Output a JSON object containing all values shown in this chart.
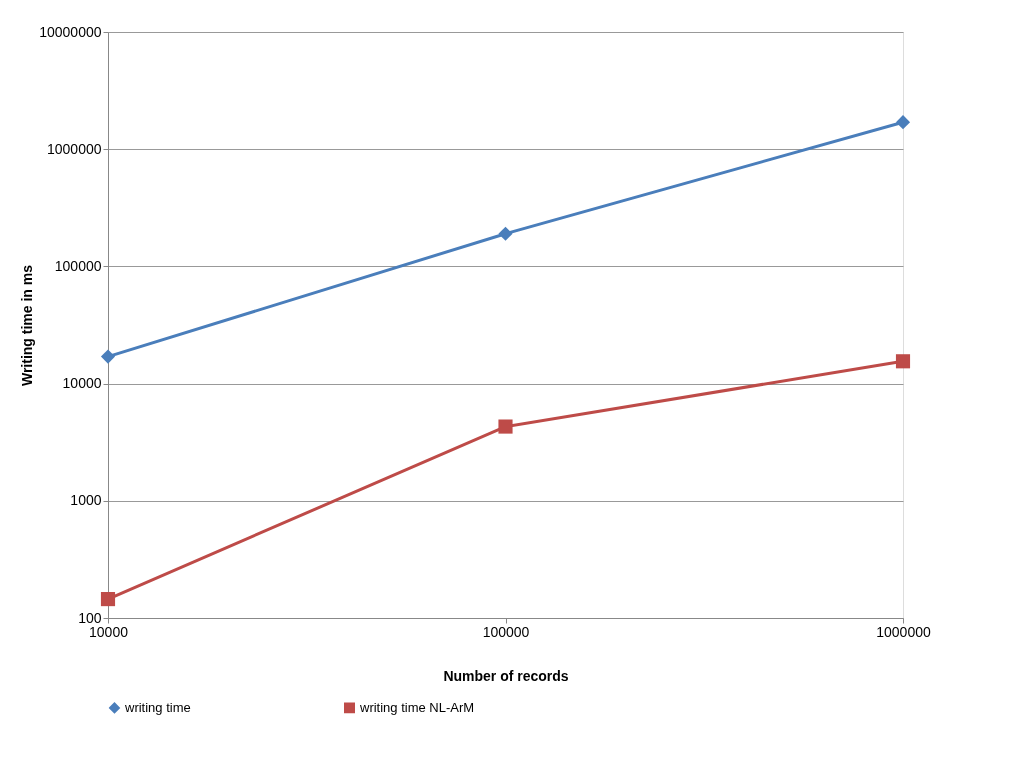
{
  "chart_data": {
    "type": "line",
    "xlabel": "Number of records",
    "ylabel": "Writing time in ms",
    "x": [
      10000,
      100000,
      1000000
    ],
    "series": [
      {
        "name": "writing time",
        "color": "#4a7ebb",
        "marker": "diamond",
        "values": [
          17000,
          190000,
          1700000
        ]
      },
      {
        "name": "writing time NL-ArM",
        "color": "#be4b48",
        "marker": "square",
        "values": [
          145,
          4300,
          15500
        ]
      }
    ],
    "log": "xy",
    "xlim": [
      10000,
      1000000
    ],
    "xticks": [
      10000,
      100000,
      1000000
    ],
    "ylim": [
      100,
      10000000
    ],
    "yticks": [
      100,
      1000,
      10000,
      100000,
      1000000,
      10000000
    ],
    "grid": "y",
    "legend": "bottom"
  }
}
